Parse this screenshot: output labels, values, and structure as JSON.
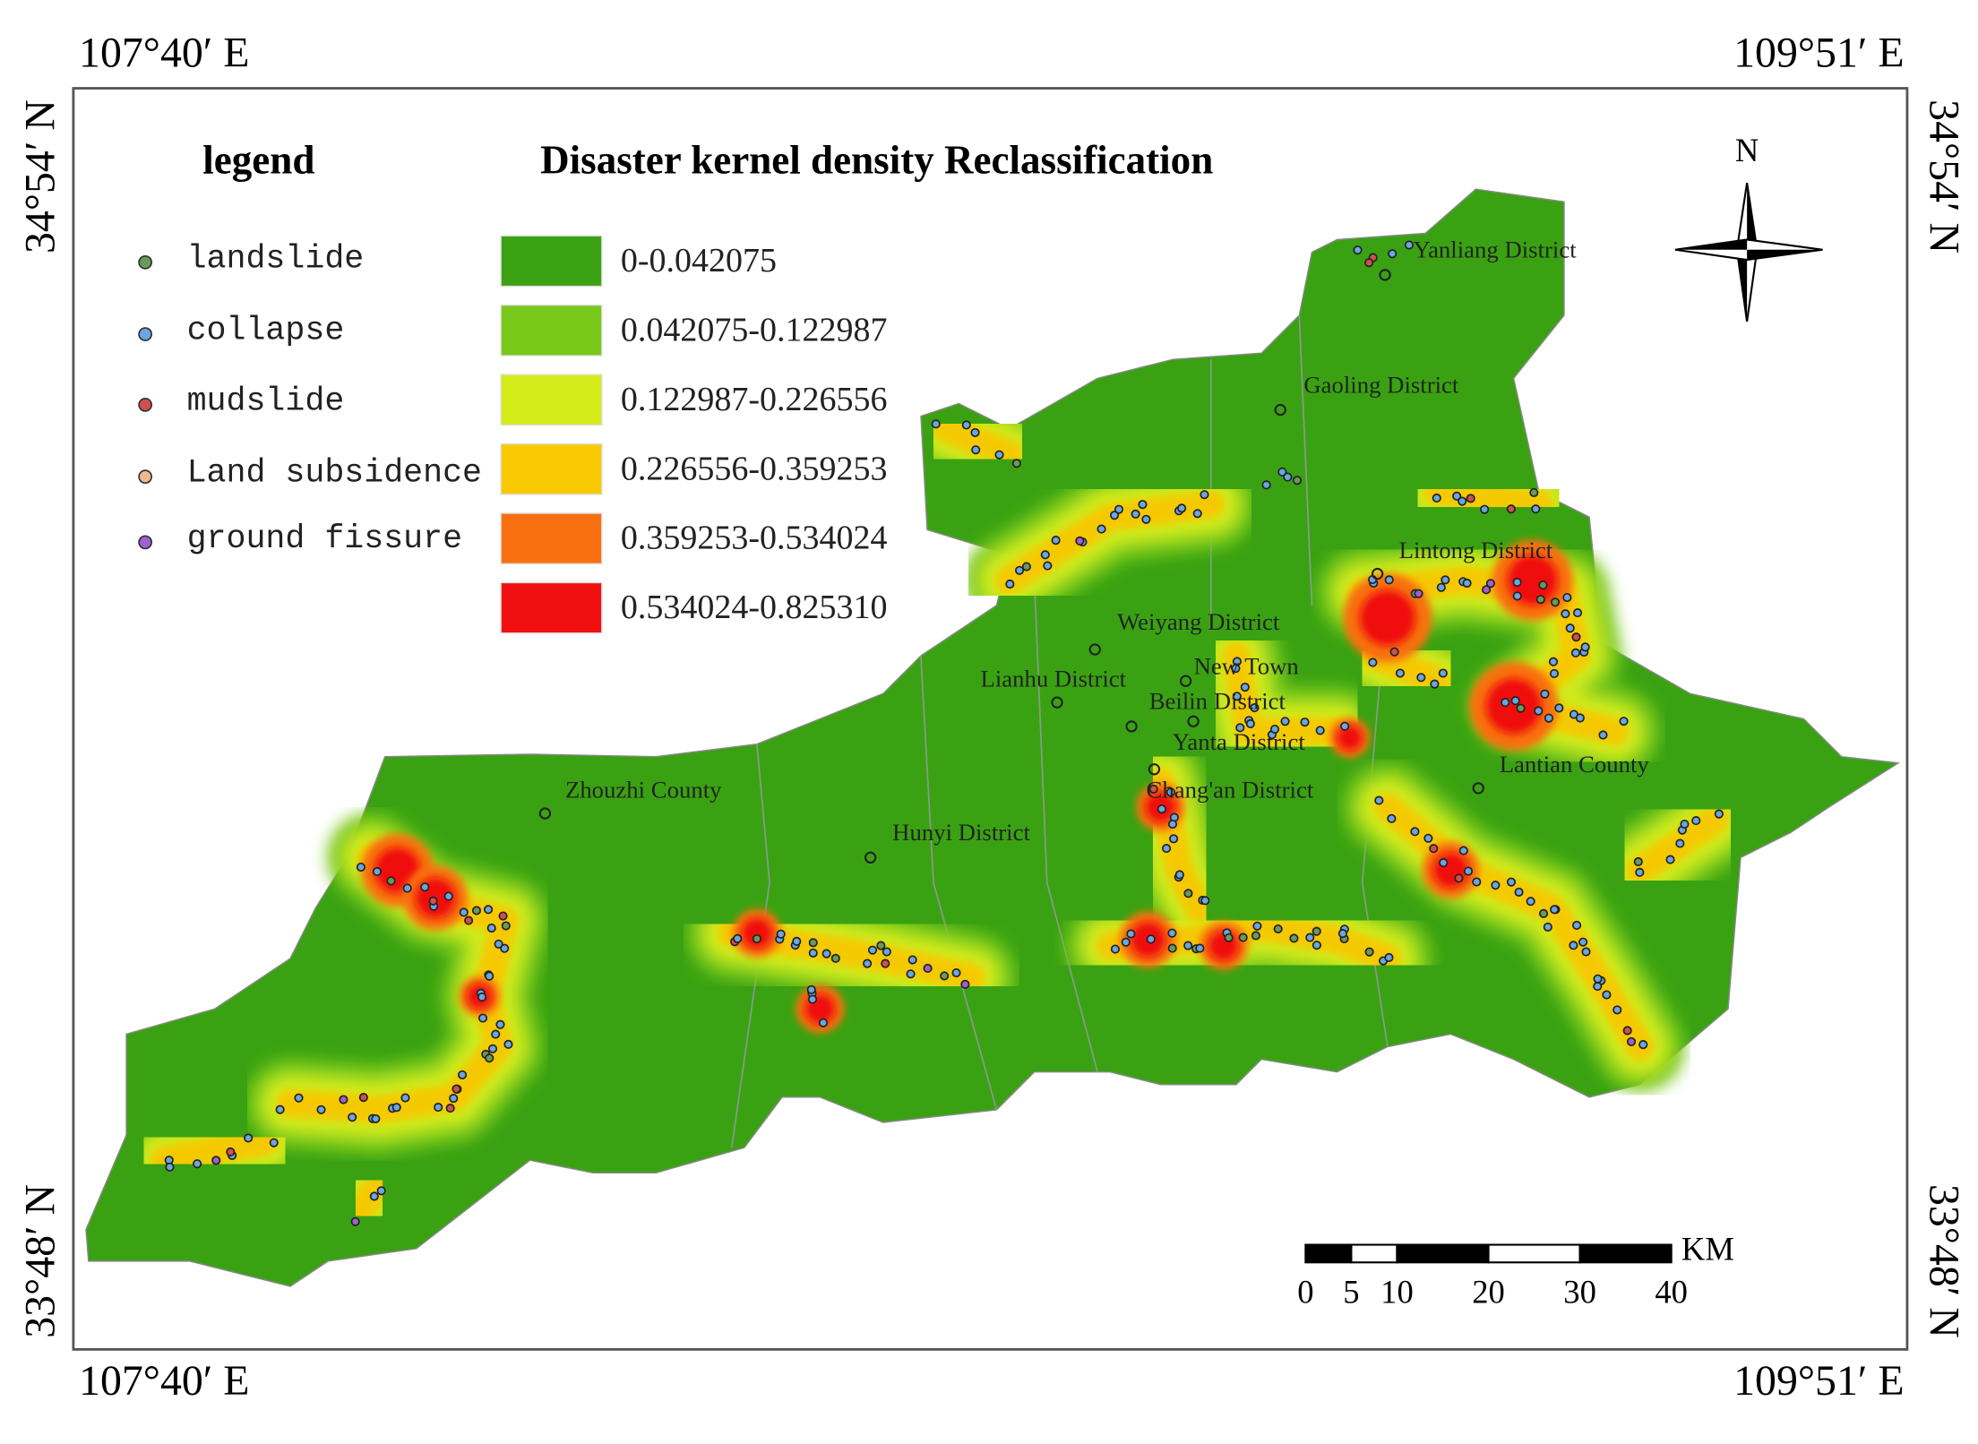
{
  "map": {
    "corners": {
      "top_left": "107°40′ E",
      "top_right": "109°51′ E",
      "bottom_left": "107°40′ E",
      "bottom_right": "109°51′ E",
      "left_top": "34°54′ N",
      "left_bottom": "33°48′ N",
      "right_top": "34°54′ N",
      "right_bottom": "33°48′ N"
    },
    "legend": {
      "title": "legend",
      "items": [
        {
          "label": "landslide",
          "color": "#6a9a5a"
        },
        {
          "label": "collapse",
          "color": "#6aa6e0"
        },
        {
          "label": "mudslide",
          "color": "#d05050"
        },
        {
          "label": "Land subsidence",
          "color": "#f0b890"
        },
        {
          "label": "ground fissure",
          "color": "#a060d0"
        }
      ]
    },
    "classification": {
      "title": "Disaster kernel density Reclassification",
      "classes": [
        {
          "label": "0-0.042075",
          "color": "#3aa212"
        },
        {
          "label": "0.042075-0.122987",
          "color": "#78c81a"
        },
        {
          "label": "0.122987-0.226556",
          "color": "#d4ec1a"
        },
        {
          "label": "0.226556-0.359253",
          "color": "#f8c800"
        },
        {
          "label": "0.359253-0.534024",
          "color": "#f87010"
        },
        {
          "label": "0.534024-0.825310",
          "color": "#f01010"
        }
      ]
    },
    "districts": [
      "Yanliang District",
      "Gaoling District",
      "Lintong District",
      "Weiyang District",
      "New Town",
      "Lianhu District",
      "Beilin District",
      "Yanta District",
      "Chang'an District",
      "Lantian County",
      "Zhouzhi County",
      "Hunyi District"
    ],
    "north": "N",
    "scale": {
      "unit": "KM",
      "ticks": [
        0,
        5,
        10,
        20,
        30,
        40
      ]
    }
  }
}
